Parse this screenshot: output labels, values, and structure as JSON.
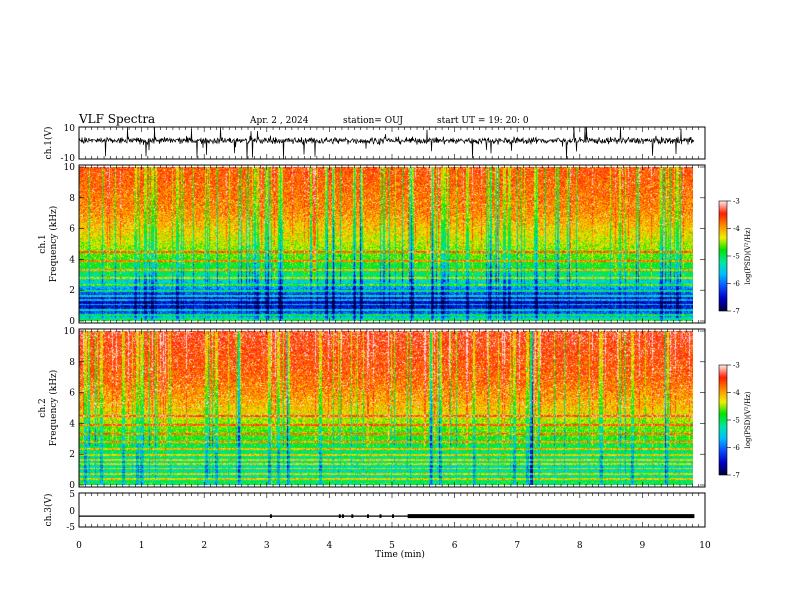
{
  "header": {
    "title": "VLF Spectra",
    "date": "Apr. 2 , 2024",
    "station": "station= OUJ",
    "start": "start UT = 19: 20: 0"
  },
  "chart_data": [
    {
      "type": "line",
      "panel": "ch1-waveform",
      "ylabel": "ch.1(V)",
      "ylim": [
        -10,
        10
      ],
      "yticks": [
        "10",
        "-10"
      ],
      "xlim": [
        0,
        10
      ],
      "baseline_v": 1.5,
      "noise_amplitude_v": 1.5
    },
    {
      "type": "heatmap",
      "panel": "ch1-spectrogram",
      "ylabel_line1": "ch.1",
      "ylabel_line2": "Frequency (kHz)",
      "ylim": [
        0,
        10
      ],
      "yticks": [
        "0",
        "2",
        "4",
        "6",
        "8",
        "10"
      ],
      "xlim": [
        0,
        9.83
      ],
      "colorbar": {
        "label": "log(PSD)(V²/Hz)",
        "ticks": [
          "-3",
          "-4",
          "-5",
          "-6",
          "-7"
        ],
        "range": [
          -7,
          -3
        ]
      },
      "level_profile": [
        {
          "f": 0.0,
          "log_psd": -4.8
        },
        {
          "f": 0.3,
          "log_psd": -5.8
        },
        {
          "f": 0.8,
          "log_psd": -6.4
        },
        {
          "f": 1.3,
          "log_psd": -6.6
        },
        {
          "f": 1.8,
          "log_psd": -6.1
        },
        {
          "f": 2.3,
          "log_psd": -5.6
        },
        {
          "f": 3.0,
          "log_psd": -5.1
        },
        {
          "f": 4.0,
          "log_psd": -4.7
        },
        {
          "f": 5.0,
          "log_psd": -4.4
        },
        {
          "f": 7.0,
          "log_psd": -3.9
        },
        {
          "f": 10.0,
          "log_psd": -3.6
        }
      ]
    },
    {
      "type": "heatmap",
      "panel": "ch2-spectrogram",
      "ylabel_line1": "ch.2",
      "ylabel_line2": "Frequency (kHz)",
      "ylim": [
        0,
        10
      ],
      "yticks": [
        "0",
        "2",
        "4",
        "6",
        "8",
        "10"
      ],
      "xlim": [
        0,
        9.83
      ],
      "colorbar": {
        "label": "log(PSD)(V²/Hz)",
        "ticks": [
          "-3",
          "-4",
          "-5",
          "-6",
          "-7"
        ],
        "range": [
          -7,
          -3
        ]
      },
      "level_profile": [
        {
          "f": 0.0,
          "log_psd": -4.9
        },
        {
          "f": 0.5,
          "log_psd": -5.2
        },
        {
          "f": 1.2,
          "log_psd": -5.3
        },
        {
          "f": 2.0,
          "log_psd": -5.1
        },
        {
          "f": 3.0,
          "log_psd": -4.8
        },
        {
          "f": 4.0,
          "log_psd": -4.5
        },
        {
          "f": 5.0,
          "log_psd": -4.1
        },
        {
          "f": 7.0,
          "log_psd": -3.7
        },
        {
          "f": 10.0,
          "log_psd": -3.4
        }
      ]
    },
    {
      "type": "line",
      "panel": "ch3-waveform",
      "ylabel": "ch.3(V)",
      "ylim": [
        -5,
        5
      ],
      "yticks": [
        "5",
        "0",
        "-5"
      ],
      "xlim": [
        0,
        10
      ],
      "xlabel": "Time (min)",
      "xticks": [
        "0",
        "1",
        "2",
        "3",
        "4",
        "5",
        "6",
        "7",
        "8",
        "9",
        "10"
      ],
      "level_v": -1.8,
      "thick_from_min": 5.25,
      "xmax_data": 9.83
    }
  ],
  "colors": {
    "colormap": [
      "#000040",
      "#0000c8",
      "#0a50ff",
      "#00c0ff",
      "#00e8a0",
      "#00e400",
      "#f0f000",
      "#ff8c00",
      "#ff1e00",
      "#ffe4e4"
    ]
  }
}
